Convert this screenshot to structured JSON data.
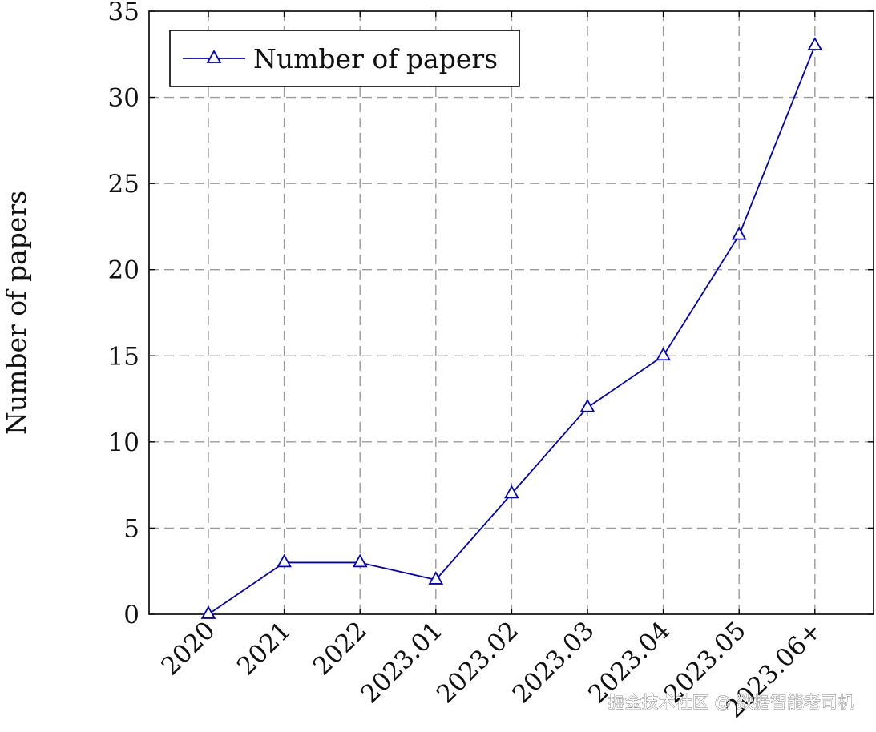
{
  "chart_data": {
    "type": "line",
    "title": "",
    "xlabel": "",
    "ylabel": "Number of papers",
    "categories": [
      "2020",
      "2021",
      "2022",
      "2023.01",
      "2023.02",
      "2023.03",
      "2023.04",
      "2023.05",
      "2023.06+"
    ],
    "series": [
      {
        "name": "Number of papers",
        "values": [
          0,
          3,
          3,
          2,
          7,
          12,
          15,
          22,
          33
        ],
        "color": "#0000cc",
        "marker": "triangle"
      }
    ],
    "yticks": [
      "0",
      "5",
      "10",
      "15",
      "20",
      "25",
      "30",
      "35"
    ],
    "ylim": [
      0,
      35
    ],
    "grid": true,
    "legend_position": "top-left"
  },
  "watermark": {
    "text": "掘金技术社区 @ 数据智能老司机"
  }
}
